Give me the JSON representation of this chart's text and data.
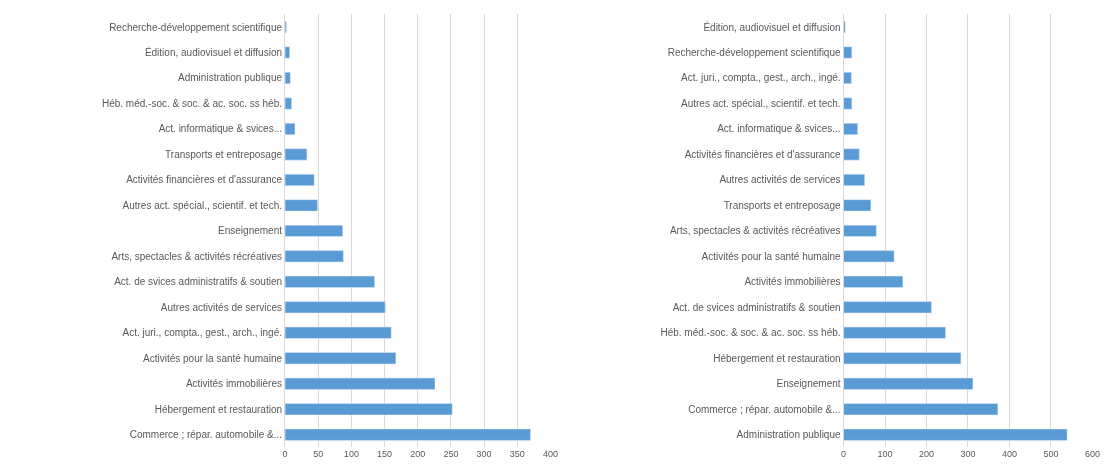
{
  "chart_data": [
    {
      "type": "bar",
      "orientation": "horizontal",
      "grid": "x",
      "color": "#5b9bd5",
      "categories": [
        "Recherche-développement scientifique",
        "Édition, audiovisuel et diffusion",
        "Administration publique",
        "Héb. méd.-soc. & soc. & ac. soc. ss héb.",
        "Act. informatique & svices...",
        "Transports et entreposage",
        "Activités financières et d'assurance",
        "Autres act. spécial., scientif. et tech.",
        "Enseignement",
        "Arts, spectacles & activités récréatives",
        "Act. de svices administratifs & soutien",
        "Autres activités de services",
        "Act. juri., compta., gest., arch., ingé.",
        "Activités pour la santé humaine",
        "Activités immobilières",
        "Hébergement et restauration",
        "Commerce ; répar. automobile &..."
      ],
      "values": [
        2,
        7,
        8,
        10,
        15,
        33,
        44,
        49,
        87,
        88,
        135,
        151,
        160,
        167,
        226,
        252,
        370
      ],
      "xlim": [
        0,
        400
      ],
      "xticks": [
        0,
        50,
        100,
        150,
        200,
        250,
        300,
        350,
        400
      ]
    },
    {
      "type": "bar",
      "orientation": "horizontal",
      "grid": "x",
      "color": "#5b9bd5",
      "categories": [
        "Édition, audiovisuel et diffusion",
        "Recherche-développement scientifique",
        "Act. juri., compta., gest., arch., ingé.",
        "Autres act. spécial., scientif. et tech.",
        "Act. informatique & svices...",
        "Activités financières et d'assurance",
        "Autres activités de services",
        "Transports et entreposage",
        "Arts, spectacles & activités récréatives",
        "Activités pour la santé humaine",
        "Activités immobilières",
        "Act. de svices administratifs & soutien",
        "Héb. méd.-soc. & soc. & ac. soc. ss héb.",
        "Hébergement et restauration",
        "Enseignement",
        "Commerce ; répar. automobile &...",
        "Administration publique"
      ],
      "values": [
        4,
        20,
        19,
        20,
        34,
        38,
        51,
        66,
        79,
        122,
        143,
        212,
        246,
        283,
        312,
        372,
        539
      ],
      "xlim": [
        0,
        600
      ],
      "xticks": [
        0,
        100,
        200,
        300,
        400,
        500,
        600
      ]
    }
  ]
}
